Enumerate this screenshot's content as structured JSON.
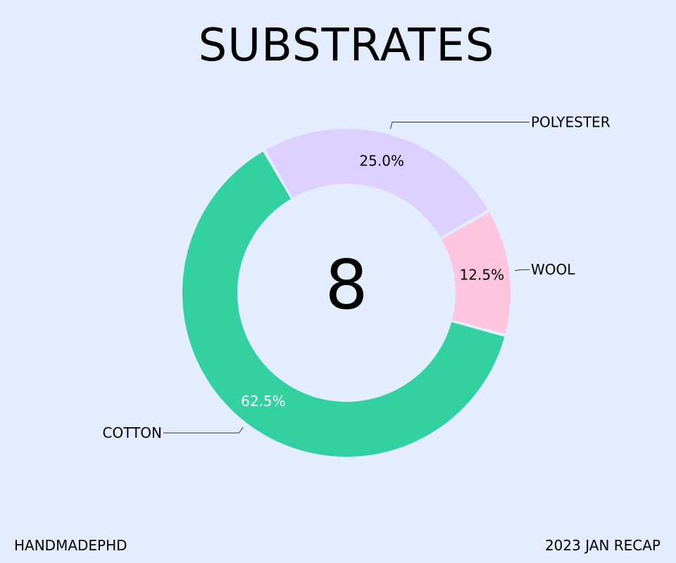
{
  "chart_data": {
    "type": "pie",
    "title": "SUBSTRATES",
    "center_label": "8",
    "categories": [
      "COTTON",
      "WOOL",
      "POLYESTER"
    ],
    "values": [
      5,
      1,
      2
    ],
    "percent_labels": [
      "62.5%",
      "12.5%",
      "25.0%"
    ],
    "colors": [
      "#33d1a2",
      "#ffc5df",
      "#ddd0fe"
    ],
    "percent_label_colors": [
      "#ffffff",
      "#000000",
      "#000000"
    ],
    "donut": true,
    "start_angle_deg": 90,
    "direction": "clockwise",
    "legend": "none"
  },
  "footer": {
    "left": "HANDMADEPHD",
    "right": "2023 JAN RECAP"
  },
  "background_color": "#e3edfe"
}
